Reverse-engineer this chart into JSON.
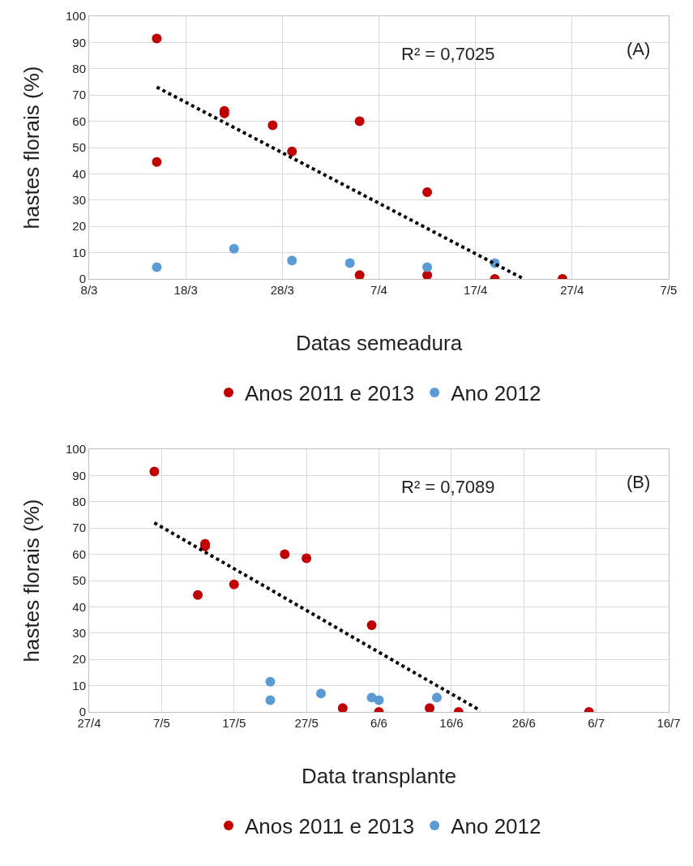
{
  "chart_data": [
    {
      "type": "scatter",
      "xlabel": "Datas semeadura",
      "ylabel": "hastes florais (%)",
      "annotations": [
        "R² = 0,7025",
        "(A)"
      ],
      "xlim": [
        "--03-08",
        "--05-07"
      ],
      "xticks": [
        {
          "value": "--03-08",
          "label": "8/3"
        },
        {
          "value": "--03-18",
          "label": "18/3"
        },
        {
          "value": "--03-28",
          "label": "28/3"
        },
        {
          "value": "--04-07",
          "label": "7/4"
        },
        {
          "value": "--04-17",
          "label": "17/4"
        },
        {
          "value": "--04-27",
          "label": "27/4"
        },
        {
          "value": "--05-07",
          "label": "7/5"
        }
      ],
      "ylim": [
        0,
        100
      ],
      "yticks": [
        0,
        10,
        20,
        30,
        40,
        50,
        60,
        70,
        80,
        90,
        100
      ],
      "grid": true,
      "legend": "bottom",
      "marker": "circle",
      "series": [
        {
          "name": "Anos 2011 e 2013",
          "color": "#c00000",
          "x": [
            "--03-15",
            "--03-15",
            "--03-22",
            "--03-22",
            "--03-27",
            "--03-29",
            "--04-05",
            "--04-05",
            "--04-12",
            "--04-12",
            "--04-19",
            "--04-26"
          ],
          "values": [
            91.5,
            44.5,
            64,
            63,
            58.5,
            48.5,
            60,
            1.5,
            33,
            1.5,
            0,
            0
          ]
        },
        {
          "name": "Ano 2012",
          "color": "#5b9bd5",
          "x": [
            "--03-15",
            "--03-23",
            "--03-29",
            "--04-04",
            "--04-12",
            "--04-19"
          ],
          "values": [
            4.5,
            11.5,
            7,
            6,
            4.5,
            6
          ]
        },
        {
          "type": "line",
          "color": "#000000",
          "line_style": "dotted",
          "marker": "none",
          "x": [
            "--03-15",
            "--04-22"
          ],
          "values": [
            73,
            0
          ]
        }
      ]
    },
    {
      "type": "scatter",
      "xlabel": "Data transplante",
      "ylabel": "hastes florais (%)",
      "annotations": [
        "R² = 0,7089",
        "(B)"
      ],
      "xlim": [
        "--04-27",
        "--07-16"
      ],
      "xticks": [
        {
          "value": "--04-27",
          "label": "27/4"
        },
        {
          "value": "--05-07",
          "label": "7/5"
        },
        {
          "value": "--05-17",
          "label": "17/5"
        },
        {
          "value": "--05-27",
          "label": "27/5"
        },
        {
          "value": "--06-06",
          "label": "6/6"
        },
        {
          "value": "--06-16",
          "label": "16/6"
        },
        {
          "value": "--06-26",
          "label": "26/6"
        },
        {
          "value": "--07-06",
          "label": "6/7"
        },
        {
          "value": "--07-16",
          "label": "16/7"
        }
      ],
      "ylim": [
        0,
        100
      ],
      "yticks": [
        0,
        10,
        20,
        30,
        40,
        50,
        60,
        70,
        80,
        90,
        100
      ],
      "grid": true,
      "legend": "bottom",
      "marker": "circle",
      "series": [
        {
          "name": "Anos 2011 e 2013",
          "color": "#c00000",
          "x": [
            "--05-06",
            "--05-13",
            "--05-13",
            "--05-12",
            "--05-17",
            "--05-24",
            "--05-27",
            "--06-01",
            "--06-05",
            "--06-06",
            "--06-13",
            "--06-17",
            "--07-05"
          ],
          "values": [
            91.5,
            64,
            63,
            44.5,
            48.5,
            60,
            58.5,
            1.5,
            33,
            0,
            1.5,
            0,
            0
          ]
        },
        {
          "name": "Ano 2012",
          "color": "#5b9bd5",
          "x": [
            "--05-22",
            "--05-22",
            "--05-29",
            "--06-05",
            "--06-06",
            "--06-14"
          ],
          "values": [
            11.5,
            4.5,
            7,
            5.5,
            4.5,
            5.5
          ]
        },
        {
          "type": "line",
          "color": "#000000",
          "line_style": "dotted",
          "marker": "none",
          "x": [
            "--05-06",
            "--06-20"
          ],
          "values": [
            72,
            0.5
          ]
        }
      ]
    }
  ]
}
